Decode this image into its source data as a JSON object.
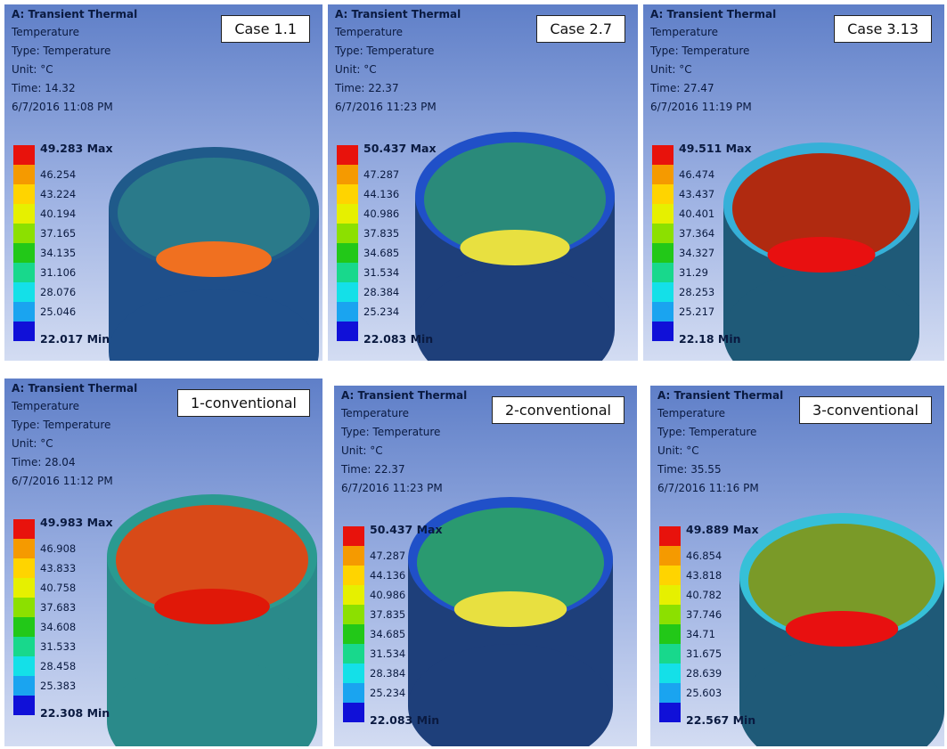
{
  "panels": [
    {
      "title": "A: Transient Thermal",
      "lines": [
        "Temperature",
        "Type: Temperature",
        "Unit: °C",
        "Time: 14.32",
        "6/7/2016 11:08 PM"
      ],
      "case": "Case 1.1",
      "legend": [
        "49.283 Max",
        "46.254",
        "43.224",
        "40.194",
        "37.165",
        "34.135",
        "31.106",
        "28.076",
        "25.046",
        "22.017 Min"
      ]
    },
    {
      "title": "A: Transient Thermal",
      "lines": [
        "Temperature",
        "Type: Temperature",
        "Unit: °C",
        "Time: 22.37",
        "6/7/2016 11:23 PM"
      ],
      "case": "Case 2.7",
      "legend": [
        "50.437 Max",
        "47.287",
        "44.136",
        "40.986",
        "37.835",
        "34.685",
        "31.534",
        "28.384",
        "25.234",
        "22.083 Min"
      ]
    },
    {
      "title": "A: Transient Thermal",
      "lines": [
        "Temperature",
        "Type: Temperature",
        "Unit: °C",
        "Time: 27.47",
        "6/7/2016 11:19 PM"
      ],
      "case": "Case 3.13",
      "legend": [
        "49.511 Max",
        "46.474",
        "43.437",
        "40.401",
        "37.364",
        "34.327",
        "31.29",
        "28.253",
        "25.217",
        "22.18 Min"
      ]
    },
    {
      "title": "A: Transient Thermal",
      "lines": [
        "Temperature",
        "Type: Temperature",
        "Unit: °C",
        "Time: 28.04",
        "6/7/2016 11:12 PM"
      ],
      "case": "1-conventional",
      "legend": [
        "49.983 Max",
        "46.908",
        "43.833",
        "40.758",
        "37.683",
        "34.608",
        "31.533",
        "28.458",
        "25.383",
        "22.308 Min"
      ]
    },
    {
      "title": "A: Transient Thermal",
      "lines": [
        "Temperature",
        "Type: Temperature",
        "Unit: °C",
        "Time: 22.37",
        "6/7/2016 11:23 PM"
      ],
      "case": "2-conventional",
      "legend": [
        "50.437 Max",
        "47.287",
        "44.136",
        "40.986",
        "37.835",
        "34.685",
        "31.534",
        "28.384",
        "25.234",
        "22.083 Min"
      ]
    },
    {
      "title": "A: Transient Thermal",
      "lines": [
        "Temperature",
        "Type: Temperature",
        "Unit: °C",
        "Time: 35.55",
        "6/7/2016 11:16 PM"
      ],
      "case": "3-conventional",
      "legend": [
        "49.889 Max",
        "46.854",
        "43.818",
        "40.782",
        "37.746",
        "34.71",
        "31.675",
        "28.639",
        "25.603",
        "22.567 Min"
      ]
    }
  ]
}
